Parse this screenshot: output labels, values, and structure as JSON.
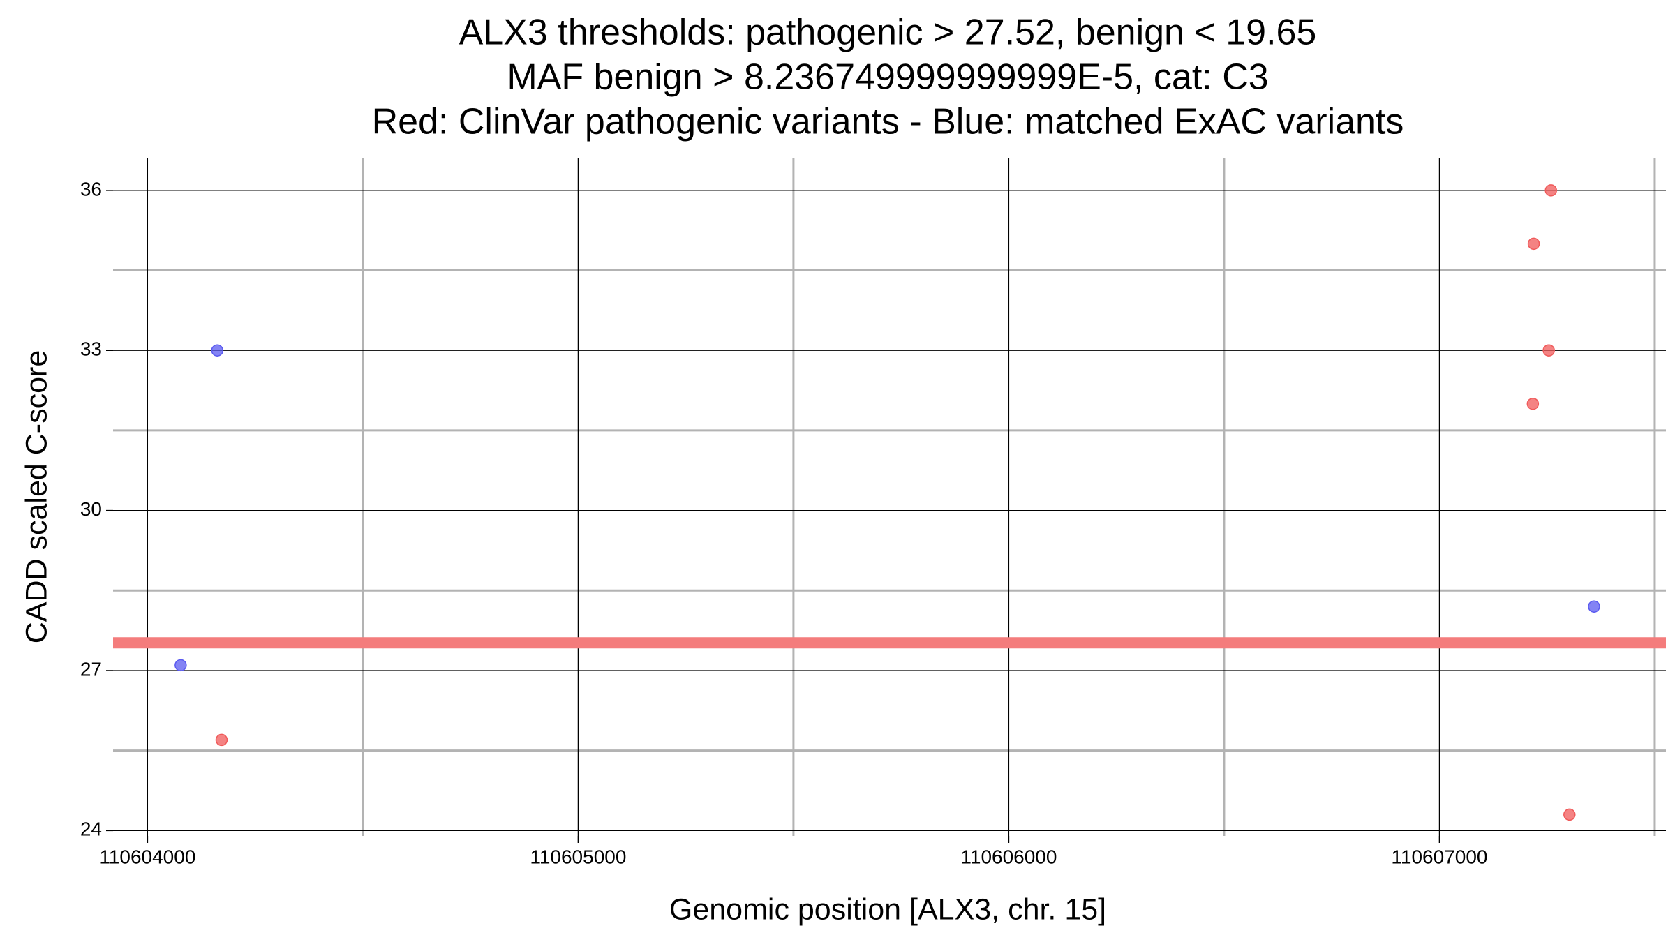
{
  "chart_data": {
    "type": "scatter",
    "title": [
      "ALX3 thresholds: pathogenic > 27.52, benign < 19.65",
      "MAF benign > 8.236749999999999E-5, cat: C3",
      "Red: ClinVar pathogenic variants - Blue: matched ExAC variants"
    ],
    "xlabel": "Genomic position [ALX3, chr. 15]",
    "ylabel": "CADD scaled C-score",
    "xlim": [
      110603920,
      110607526
    ],
    "ylim": [
      23.9,
      36.6
    ],
    "xticks": [
      110604000,
      110605000,
      110606000,
      110607000
    ],
    "yticks": [
      24,
      27,
      30,
      33,
      36
    ],
    "x_minor_grid": [
      110604500,
      110605500,
      110606500,
      110607500
    ],
    "y_minor_grid": [
      25.5,
      28.5,
      31.5,
      34.5
    ],
    "grid": true,
    "reference_line": {
      "value": 27.52,
      "color": "#f47c7c"
    },
    "series": [
      {
        "name": "ClinVar pathogenic variants",
        "color": "#f05a5a",
        "x": [
          110607259,
          110607219,
          110607254,
          110607217,
          110604172,
          110607302
        ],
        "values": [
          36,
          35,
          33,
          32,
          25.7,
          24.3
        ]
      },
      {
        "name": "matched ExAC variants",
        "color": "#5a5af0",
        "x": [
          110604162,
          110604077,
          110607359
        ],
        "values": [
          33,
          27.1,
          28.2
        ]
      }
    ]
  }
}
